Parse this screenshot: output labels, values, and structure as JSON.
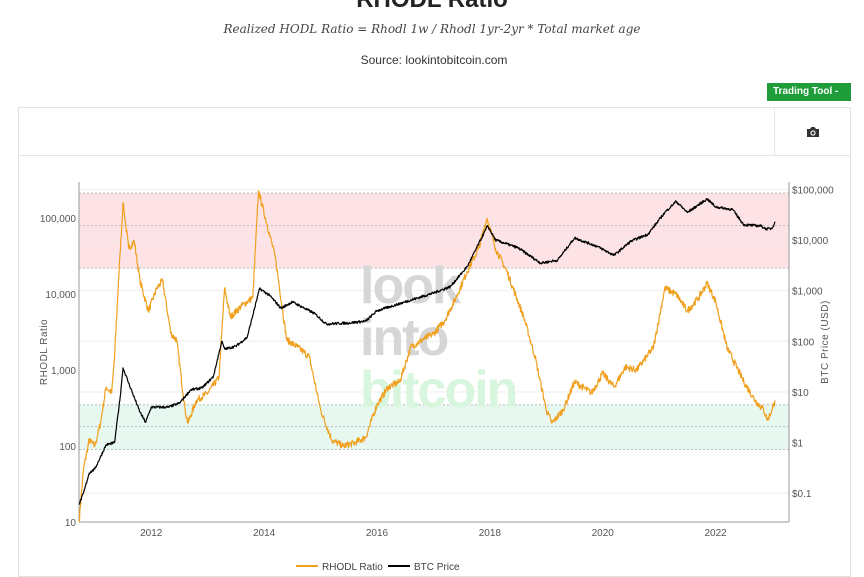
{
  "header": {
    "title": "RHODL Ratio",
    "formula": "Realized HODL Ratio = Rhodl 1w / Rhodl 1yr-2yr * Total market age",
    "source": "Source: lookintobitcoin.com",
    "trading_tool_label": "Trading Tool  -"
  },
  "toolbar": {
    "camera_icon": "camera-icon"
  },
  "colors": {
    "rhodl": "#f0a01e",
    "btc": "#000000",
    "red_band": "#fde3e5",
    "green_band": "#e6f8f0",
    "button": "#1f9d3a"
  },
  "chart_data": {
    "type": "line",
    "watermark": [
      "look",
      "into",
      "bitcoin"
    ],
    "xlabel": "",
    "x_ticks": [
      2012,
      2014,
      2016,
      2018,
      2020,
      2022
    ],
    "x_range": [
      2010.72,
      2023.3
    ],
    "y_left": {
      "label": "RHODL Ratio",
      "scale": "log",
      "range": [
        10,
        300000
      ],
      "ticks": [
        10,
        100,
        1000,
        10000,
        100000
      ],
      "tick_labels": [
        "10",
        "100",
        "1,000",
        "10,000",
        "100,000"
      ]
    },
    "y_right": {
      "label": "BTC Price (USD)",
      "scale": "log",
      "range": [
        0.027,
        140000
      ],
      "ticks": [
        0.1,
        1,
        10,
        100,
        1000,
        10000,
        100000
      ],
      "tick_labels": [
        "$0.1",
        "$1",
        "$10",
        "$100",
        "$1,000",
        "$10,000",
        "$100,000"
      ]
    },
    "bands": [
      {
        "name": "overheated-zone",
        "from": 22000,
        "to": 215000,
        "color": "#fde3e5"
      },
      {
        "name": "undervalued-zone",
        "from": 90,
        "to": 350,
        "color": "#e6f8f0"
      }
    ],
    "dashed_lines": [
      215000,
      80000,
      22000,
      350,
      180,
      90
    ],
    "legend": [
      {
        "name": "RHODL Ratio",
        "color": "#f0a01e"
      },
      {
        "name": "BTC Price",
        "color": "#000000"
      }
    ],
    "legend_position": "bottom",
    "series": [
      {
        "name": "RHODL Ratio",
        "axis": "left",
        "points": [
          [
            2010.72,
            10
          ],
          [
            2010.8,
            50
          ],
          [
            2010.9,
            120
          ],
          [
            2011.0,
            100
          ],
          [
            2011.1,
            200
          ],
          [
            2011.2,
            600
          ],
          [
            2011.3,
            500
          ],
          [
            2011.35,
            1500
          ],
          [
            2011.42,
            15000
          ],
          [
            2011.5,
            160000
          ],
          [
            2011.6,
            40000
          ],
          [
            2011.7,
            50000
          ],
          [
            2011.8,
            15000
          ],
          [
            2011.95,
            6000
          ],
          [
            2012.1,
            12000
          ],
          [
            2012.2,
            15000
          ],
          [
            2012.35,
            3000
          ],
          [
            2012.45,
            2500
          ],
          [
            2012.6,
            300
          ],
          [
            2012.65,
            200
          ],
          [
            2012.8,
            400
          ],
          [
            2013.0,
            500
          ],
          [
            2013.2,
            800
          ],
          [
            2013.3,
            12000
          ],
          [
            2013.4,
            5000
          ],
          [
            2013.6,
            7000
          ],
          [
            2013.8,
            9000
          ],
          [
            2013.9,
            230000
          ],
          [
            2014.1,
            60000
          ],
          [
            2014.2,
            30000
          ],
          [
            2014.4,
            2500
          ],
          [
            2014.6,
            2000
          ],
          [
            2014.8,
            1500
          ],
          [
            2015.0,
            300
          ],
          [
            2015.2,
            120
          ],
          [
            2015.4,
            100
          ],
          [
            2015.6,
            110
          ],
          [
            2015.8,
            130
          ],
          [
            2016.0,
            350
          ],
          [
            2016.2,
            600
          ],
          [
            2016.4,
            700
          ],
          [
            2016.6,
            2000
          ],
          [
            2016.8,
            2500
          ],
          [
            2017.0,
            3000
          ],
          [
            2017.2,
            4500
          ],
          [
            2017.4,
            9000
          ],
          [
            2017.6,
            20000
          ],
          [
            2017.8,
            40000
          ],
          [
            2017.95,
            100000
          ],
          [
            2018.1,
            40000
          ],
          [
            2018.3,
            20000
          ],
          [
            2018.6,
            5000
          ],
          [
            2018.8,
            1500
          ],
          [
            2019.0,
            300
          ],
          [
            2019.1,
            200
          ],
          [
            2019.3,
            300
          ],
          [
            2019.5,
            700
          ],
          [
            2019.8,
            500
          ],
          [
            2020.0,
            900
          ],
          [
            2020.2,
            600
          ],
          [
            2020.4,
            1100
          ],
          [
            2020.6,
            1000
          ],
          [
            2020.9,
            2000
          ],
          [
            2021.1,
            12000
          ],
          [
            2021.3,
            10000
          ],
          [
            2021.5,
            6000
          ],
          [
            2021.7,
            9000
          ],
          [
            2021.85,
            14000
          ],
          [
            2022.0,
            8000
          ],
          [
            2022.2,
            2000
          ],
          [
            2022.5,
            700
          ],
          [
            2022.7,
            400
          ],
          [
            2022.85,
            300
          ],
          [
            2022.92,
            220
          ],
          [
            2023.0,
            300
          ],
          [
            2023.05,
            400
          ]
        ]
      },
      {
        "name": "BTC Price",
        "axis": "right",
        "points": [
          [
            2010.72,
            0.06
          ],
          [
            2010.8,
            0.1
          ],
          [
            2010.9,
            0.25
          ],
          [
            2011.0,
            0.3
          ],
          [
            2011.2,
            0.9
          ],
          [
            2011.35,
            1
          ],
          [
            2011.45,
            8
          ],
          [
            2011.5,
            30
          ],
          [
            2011.6,
            15
          ],
          [
            2011.8,
            4
          ],
          [
            2011.9,
            2.5
          ],
          [
            2012.0,
            5
          ],
          [
            2012.3,
            5
          ],
          [
            2012.5,
            6
          ],
          [
            2012.7,
            11
          ],
          [
            2012.9,
            12
          ],
          [
            2013.1,
            20
          ],
          [
            2013.25,
            100
          ],
          [
            2013.3,
            70
          ],
          [
            2013.5,
            80
          ],
          [
            2013.7,
            120
          ],
          [
            2013.92,
            1100
          ],
          [
            2014.1,
            800
          ],
          [
            2014.3,
            450
          ],
          [
            2014.5,
            600
          ],
          [
            2014.9,
            350
          ],
          [
            2015.1,
            220
          ],
          [
            2015.5,
            230
          ],
          [
            2015.8,
            250
          ],
          [
            2016.0,
            400
          ],
          [
            2016.5,
            600
          ],
          [
            2017.0,
            900
          ],
          [
            2017.3,
            1200
          ],
          [
            2017.6,
            3000
          ],
          [
            2017.96,
            19000
          ],
          [
            2018.1,
            10000
          ],
          [
            2018.5,
            7000
          ],
          [
            2018.9,
            3500
          ],
          [
            2019.2,
            4000
          ],
          [
            2019.5,
            11000
          ],
          [
            2019.9,
            7500
          ],
          [
            2020.2,
            5000
          ],
          [
            2020.5,
            9500
          ],
          [
            2020.8,
            13000
          ],
          [
            2021.1,
            35000
          ],
          [
            2021.3,
            58000
          ],
          [
            2021.5,
            35000
          ],
          [
            2021.85,
            65000
          ],
          [
            2022.0,
            45000
          ],
          [
            2022.3,
            40000
          ],
          [
            2022.5,
            20000
          ],
          [
            2022.8,
            19000
          ],
          [
            2022.9,
            16500
          ],
          [
            2023.0,
            17000
          ],
          [
            2023.05,
            23000
          ]
        ]
      }
    ]
  }
}
